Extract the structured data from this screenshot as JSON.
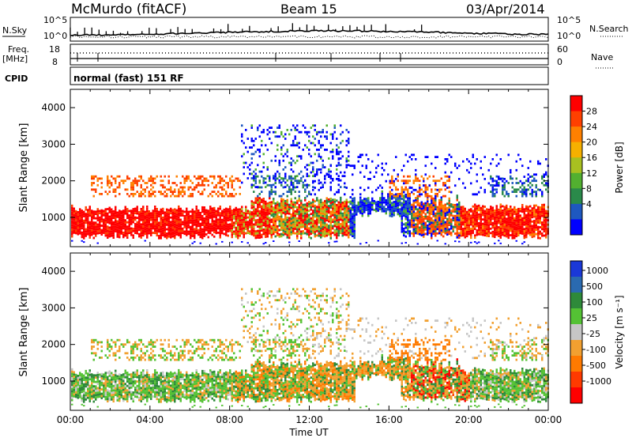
{
  "header": {
    "station": "McMurdo (fitACF)",
    "beam": "Beam 15",
    "date": "03/Apr/2014"
  },
  "scan_panel": {
    "left_label": "N.Sky",
    "right_label": "N.Search",
    "left_ticks": [
      "10^5",
      "10^0"
    ],
    "right_ticks": [
      "10^5",
      "10^0"
    ]
  },
  "freq_panel": {
    "left_label_top": "Freq.",
    "left_label_bottom": "[MHz]",
    "right_label": "Nave",
    "left_ticks": [
      "18",
      "8"
    ],
    "right_ticks": [
      "60",
      "0"
    ]
  },
  "cpid_panel": {
    "label": "CPID",
    "text": "normal (fast) 151 RF"
  },
  "chart_data": [
    {
      "type": "heatmap",
      "name": "power",
      "ylabel": "Slant Range [km]",
      "yticks": [
        1000,
        2000,
        3000,
        4000
      ],
      "ylim": [
        200,
        4500
      ],
      "xlim": [
        0,
        24
      ],
      "colorbar_label": "Power [dB]",
      "colorbar_ticks": [
        "28",
        "24",
        "20",
        "16",
        "12",
        "8",
        "4"
      ],
      "colorbar_colors": [
        "#ff0000",
        "#ff4000",
        "#ff8000",
        "#f6b000",
        "#a8c020",
        "#52b030",
        "#2a8a4a",
        "#1e58c0",
        "#0000ff"
      ]
    },
    {
      "type": "heatmap",
      "name": "velocity",
      "ylabel": "Slant Range [km]",
      "yticks": [
        1000,
        2000,
        3000,
        4000
      ],
      "ylim": [
        200,
        4500
      ],
      "xlim": [
        0,
        24
      ],
      "colorbar_label": "Velocity [m s⁻¹]",
      "colorbar_ticks": [
        "1000",
        "500",
        "100",
        "25",
        "-25",
        "-100",
        "-500",
        "-1000"
      ],
      "colorbar_colors": [
        "#1a38d8",
        "#2a6ab0",
        "#2e8a3a",
        "#54c234",
        "#c6c6c6",
        "#f2a030",
        "#ff7a00",
        "#ff3a00",
        "#ff0000"
      ],
      "xlabel": "Time UT",
      "xticks": [
        "00:00",
        "04:00",
        "08:00",
        "12:00",
        "16:00",
        "20:00",
        "00:00"
      ]
    }
  ]
}
